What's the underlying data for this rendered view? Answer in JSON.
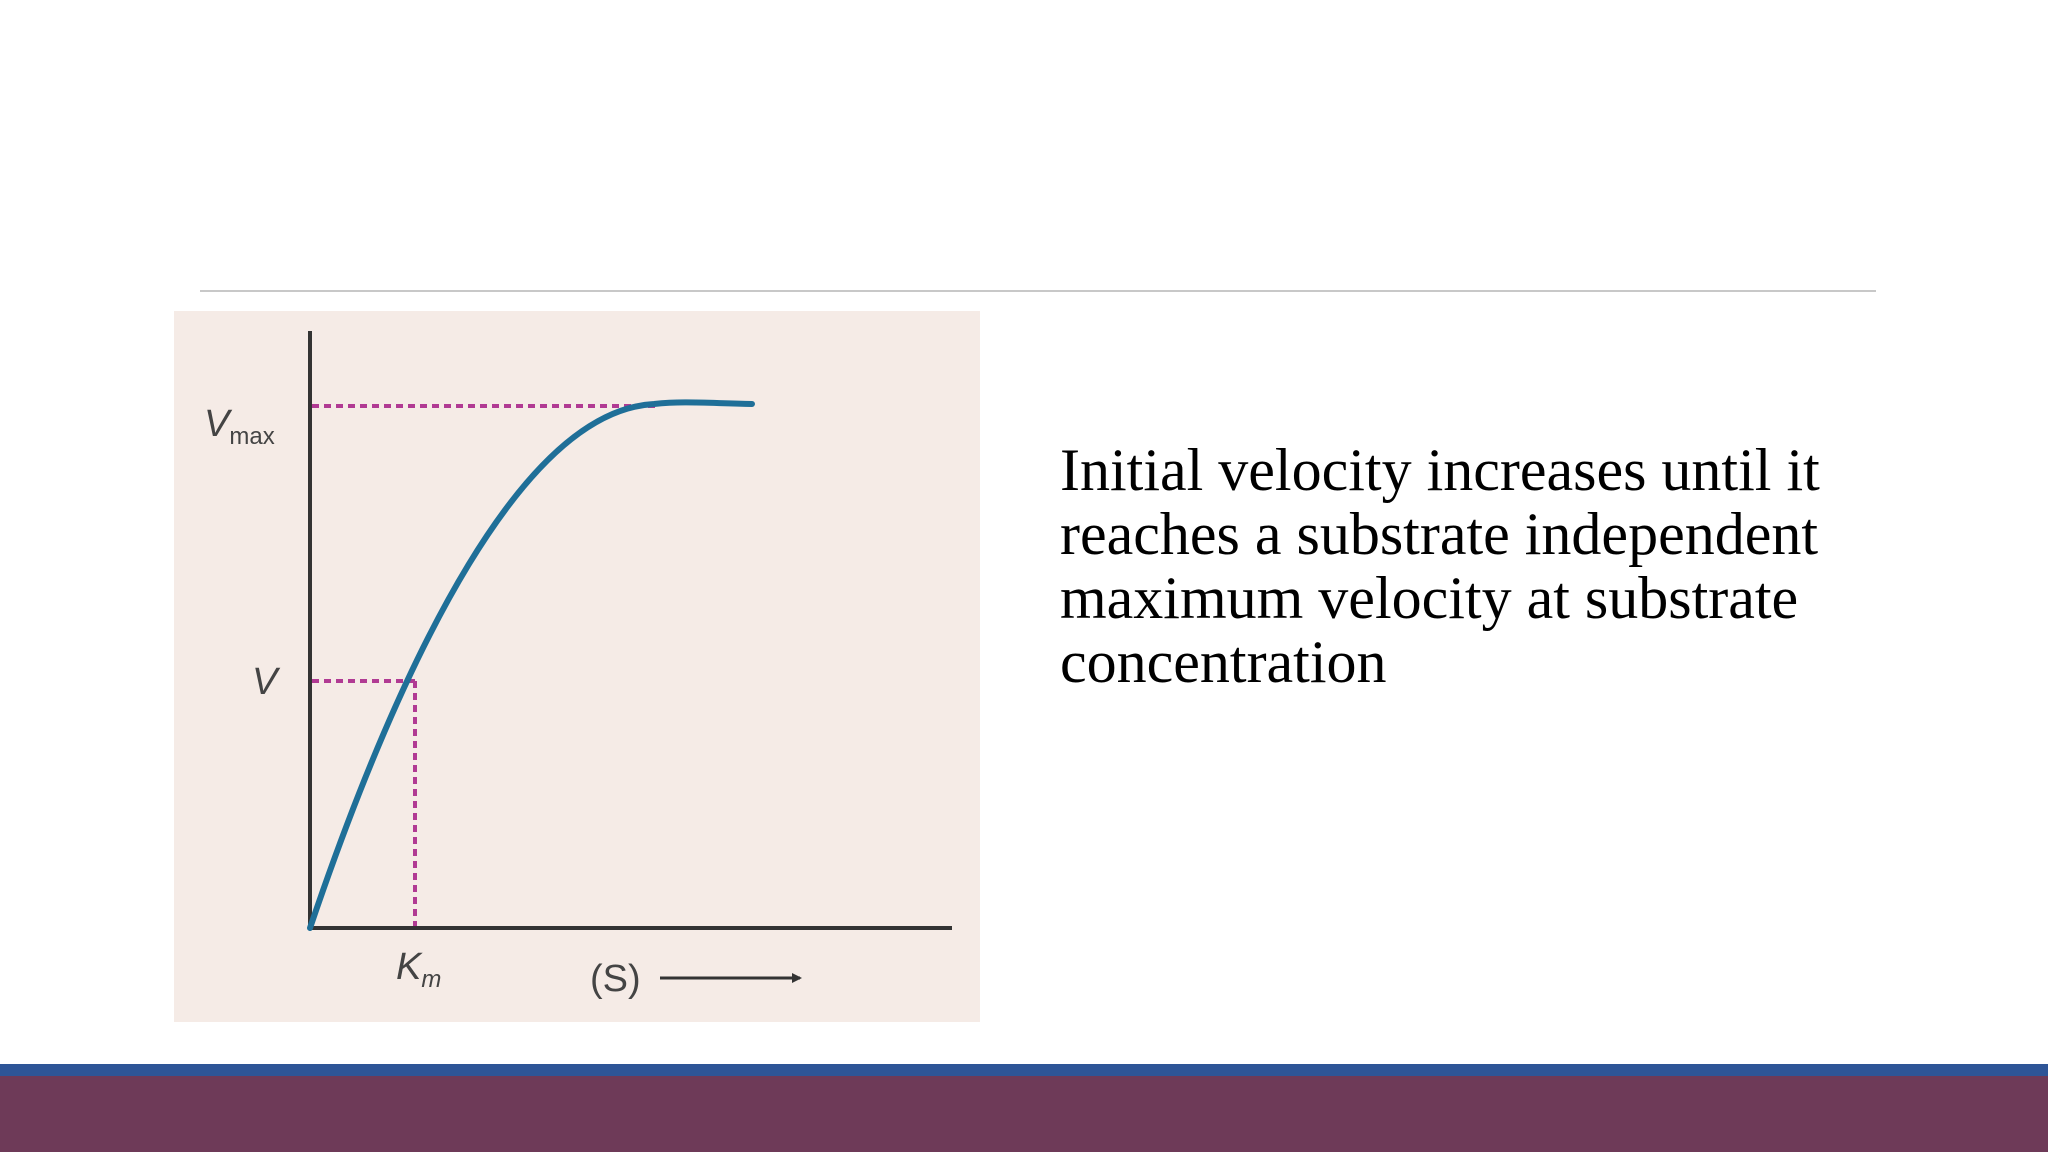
{
  "slide": {
    "body_text": "Initial velocity increases until it reaches a substrate independent maximum velocity at substrate concentration"
  },
  "figure": {
    "y_labels": {
      "vmax_main": "V",
      "vmax_sub": "max",
      "v": "V"
    },
    "x_labels": {
      "km_main": "K",
      "km_sub": "m",
      "substrate": "(S)"
    }
  },
  "colors": {
    "curve": "#1f6f98",
    "guide": "#b13a93",
    "axis": "#333333",
    "figure_bg": "#f5ebe6",
    "footer_blue": "#2e5597",
    "footer_plum": "#6e3a58"
  }
}
